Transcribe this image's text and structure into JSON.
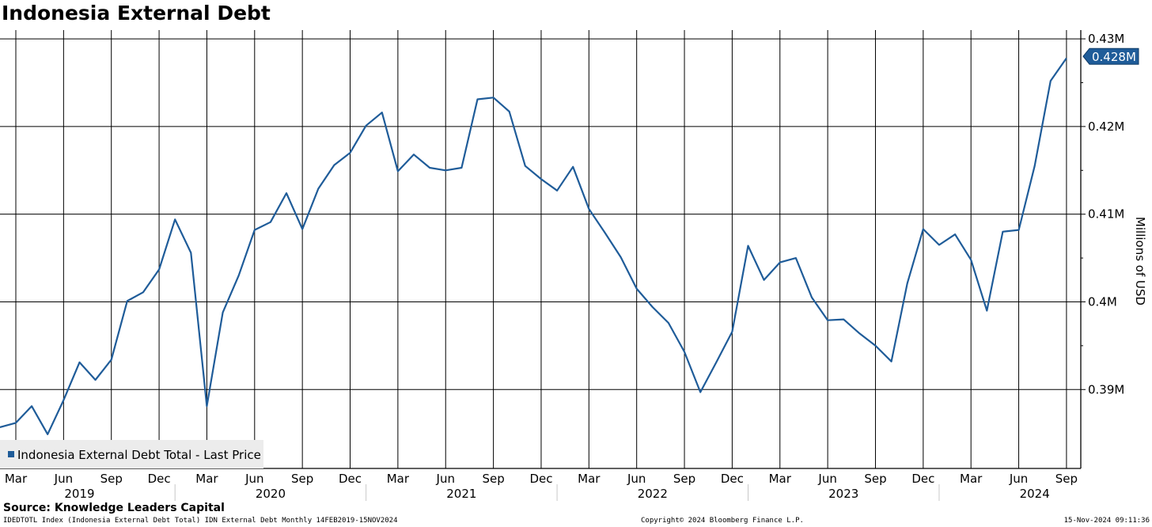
{
  "chart_data": {
    "type": "line",
    "title": "Indonesia External Debt",
    "ylabel": "Millions of USD",
    "ylim": [
      0.381,
      0.431
    ],
    "yticks": [
      0.39,
      0.4,
      0.41,
      0.42,
      0.43
    ],
    "ytick_labels": [
      "0.39M",
      "0.4M",
      "0.41M",
      "0.42M",
      "0.43M"
    ],
    "last_value": 0.428,
    "last_value_label": "0.428M",
    "legend": {
      "placement": "bottom-left",
      "entries": [
        "Indonesia External Debt Total - Last Price"
      ]
    },
    "grid": true,
    "x_month_ticks": [
      "2019-03",
      "2019-06",
      "2019-09",
      "2019-12",
      "2020-03",
      "2020-06",
      "2020-09",
      "2020-12",
      "2021-03",
      "2021-06",
      "2021-09",
      "2021-12",
      "2022-03",
      "2022-06",
      "2022-09",
      "2022-12",
      "2023-03",
      "2023-06",
      "2023-09",
      "2023-12",
      "2024-03",
      "2024-06",
      "2024-09"
    ],
    "x_month_labels": [
      "Mar",
      "Jun",
      "Sep",
      "Dec",
      "Mar",
      "Jun",
      "Sep",
      "Dec",
      "Mar",
      "Jun",
      "Sep",
      "Dec",
      "Mar",
      "Jun",
      "Sep",
      "Dec",
      "Mar",
      "Jun",
      "Sep",
      "Dec",
      "Mar",
      "Jun",
      "Sep"
    ],
    "x_year_labels": [
      {
        "label": "2019",
        "center": "2019-07"
      },
      {
        "label": "2020",
        "center": "2020-07"
      },
      {
        "label": "2021",
        "center": "2021-07"
      },
      {
        "label": "2022",
        "center": "2022-07"
      },
      {
        "label": "2023",
        "center": "2023-07"
      },
      {
        "label": "2024",
        "center": "2024-07"
      }
    ],
    "x_year_boundaries": [
      "2020-01",
      "2021-01",
      "2022-01",
      "2023-01",
      "2024-01"
    ],
    "series": [
      {
        "name": "Indonesia External Debt Total - Last Price",
        "color": "#1f5c99",
        "x": [
          "2019-02",
          "2019-03",
          "2019-04",
          "2019-05",
          "2019-06",
          "2019-07",
          "2019-08",
          "2019-09",
          "2019-10",
          "2019-11",
          "2019-12",
          "2020-01",
          "2020-02",
          "2020-03",
          "2020-04",
          "2020-05",
          "2020-06",
          "2020-07",
          "2020-08",
          "2020-09",
          "2020-10",
          "2020-11",
          "2020-12",
          "2021-01",
          "2021-02",
          "2021-03",
          "2021-04",
          "2021-05",
          "2021-06",
          "2021-07",
          "2021-08",
          "2021-09",
          "2021-10",
          "2021-11",
          "2021-12",
          "2022-01",
          "2022-02",
          "2022-03",
          "2022-04",
          "2022-05",
          "2022-06",
          "2022-07",
          "2022-08",
          "2022-09",
          "2022-10",
          "2022-11",
          "2022-12",
          "2023-01",
          "2023-02",
          "2023-03",
          "2023-04",
          "2023-05",
          "2023-06",
          "2023-07",
          "2023-08",
          "2023-09",
          "2023-10",
          "2023-11",
          "2023-12",
          "2024-01",
          "2024-02",
          "2024-03",
          "2024-04",
          "2024-05",
          "2024-06",
          "2024-07",
          "2024-08",
          "2024-09"
        ],
        "values": [
          0.3857,
          0.3862,
          0.3881,
          0.3849,
          0.3888,
          0.3931,
          0.3911,
          0.3934,
          0.4001,
          0.4011,
          0.4037,
          0.4094,
          0.4056,
          0.3881,
          0.3988,
          0.403,
          0.4082,
          0.4091,
          0.4124,
          0.4083,
          0.4129,
          0.4156,
          0.417,
          0.4201,
          0.4216,
          0.4149,
          0.4168,
          0.4153,
          0.415,
          0.4153,
          0.4231,
          0.4233,
          0.4217,
          0.4155,
          0.414,
          0.4127,
          0.4154,
          0.4106,
          0.4079,
          0.4051,
          0.4015,
          0.3994,
          0.3976,
          0.3943,
          0.3897,
          0.3931,
          0.3966,
          0.4064,
          0.4025,
          0.4045,
          0.405,
          0.4005,
          0.3979,
          0.398,
          0.3964,
          0.395,
          0.3932,
          0.4021,
          0.4083,
          0.4065,
          0.4077,
          0.4048,
          0.399,
          0.408,
          0.4082,
          0.4155,
          0.4252,
          0.4278
        ]
      }
    ]
  },
  "footer": {
    "source": "Source: Knowledge Leaders Capital",
    "left": "IDEDTOTL Index (Indonesia External Debt Total) IDN External Debt  Monthly 14FEB2019-15NOV2024",
    "center": "Copyright© 2024 Bloomberg Finance L.P.",
    "right": "15-Nov-2024 09:11:36"
  }
}
